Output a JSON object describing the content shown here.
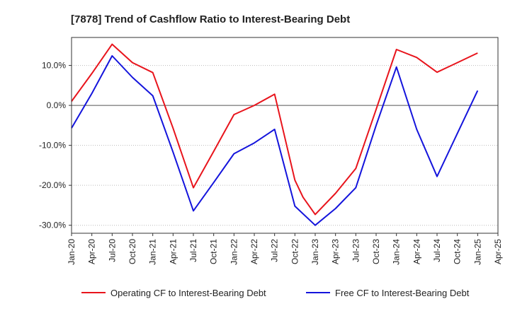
{
  "chart_data": {
    "type": "line",
    "title": "[7878]  Trend of Cashflow Ratio to Interest-Bearing Debt",
    "xlabel": "",
    "ylabel": "",
    "x_tick_labels": [
      "Jan-20",
      "Apr-20",
      "Jul-20",
      "Oct-20",
      "Jan-21",
      "Apr-21",
      "Jul-21",
      "Oct-21",
      "Jan-22",
      "Apr-22",
      "Jul-22",
      "Oct-22",
      "Jan-23",
      "Apr-23",
      "Jul-23",
      "Oct-23",
      "Jan-24",
      "Apr-24",
      "Jul-24",
      "Oct-24",
      "Jan-25",
      "Apr-25"
    ],
    "y_ticks": [
      10,
      0,
      -10,
      -20,
      -30
    ],
    "y_tick_labels": [
      "10.0%",
      "0.0%",
      "-10.0%",
      "-20.0%",
      "-30.0%"
    ],
    "ylim": [
      -32,
      17
    ],
    "grid": "y",
    "zero_line": true,
    "legend_position": "bottom",
    "series": [
      {
        "name": "Operating CF to Interest-Bearing Debt",
        "color": "#e8141c",
        "points": [
          [
            0,
            1.0
          ],
          [
            1,
            8.0
          ],
          [
            2,
            15.3
          ],
          [
            3,
            10.7
          ],
          [
            4,
            8.2
          ],
          [
            5,
            -5.7
          ],
          [
            6,
            -20.6
          ],
          [
            7,
            -11.5
          ],
          [
            8,
            -2.3
          ],
          [
            9,
            0.0
          ],
          [
            10,
            2.8
          ],
          [
            11,
            -18.7
          ],
          [
            11.4,
            -23.0
          ],
          [
            12,
            -27.3
          ],
          [
            13,
            -22.0
          ],
          [
            14,
            -15.8
          ],
          [
            15,
            -1.0
          ],
          [
            16,
            14.0
          ],
          [
            17,
            12.0
          ],
          [
            18,
            8.3
          ],
          [
            19,
            10.7
          ],
          [
            20,
            13.1
          ]
        ]
      },
      {
        "name": "Free CF to Interest-Bearing Debt",
        "color": "#1414dc",
        "points": [
          [
            0,
            -5.7
          ],
          [
            1,
            3.0
          ],
          [
            2,
            12.4
          ],
          [
            3,
            7.0
          ],
          [
            4,
            2.4
          ],
          [
            5,
            -11.7
          ],
          [
            6,
            -26.4
          ],
          [
            7,
            -19.3
          ],
          [
            8,
            -12.1
          ],
          [
            9,
            -9.4
          ],
          [
            10,
            -6.0
          ],
          [
            11,
            -25.2
          ],
          [
            12,
            -30.0
          ],
          [
            13,
            -25.8
          ],
          [
            14,
            -20.6
          ],
          [
            15,
            -5.0
          ],
          [
            16,
            9.6
          ],
          [
            17,
            -6.0
          ],
          [
            18,
            -17.8
          ],
          [
            19,
            -7.0
          ],
          [
            20,
            3.7
          ]
        ]
      }
    ]
  }
}
